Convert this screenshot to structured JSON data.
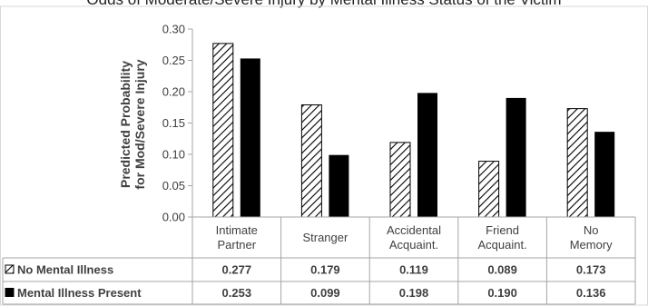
{
  "title": "Odds of Moderate/Severe Injury by Mental Illness Status of the Victim",
  "chart_data": {
    "type": "bar",
    "ylabel_lines": [
      "Predicted Probability",
      "for Mod/Severe Injury"
    ],
    "ylim": [
      0,
      0.3
    ],
    "yticks": [
      "0.00",
      "0.05",
      "0.10",
      "0.15",
      "0.20",
      "0.25",
      "0.30"
    ],
    "categories": [
      [
        "Intimate",
        "Partner"
      ],
      [
        "Stranger"
      ],
      [
        "Accidental",
        "Acquaint."
      ],
      [
        "Friend",
        "Acquaint."
      ],
      [
        "No",
        "Memory"
      ]
    ],
    "series": [
      {
        "name": "No Mental Illness",
        "pattern": "hatch",
        "values": [
          0.277,
          0.179,
          0.119,
          0.089,
          0.173
        ],
        "labels": [
          "0.277",
          "0.179",
          "0.119",
          "0.089",
          "0.173"
        ]
      },
      {
        "name": "Mental Illness Present",
        "pattern": "solid",
        "values": [
          0.253,
          0.099,
          0.198,
          0.19,
          0.136
        ],
        "labels": [
          "0.253",
          "0.099",
          "0.198",
          "0.190",
          "0.136"
        ]
      }
    ],
    "grid": false,
    "legend": "data-table"
  },
  "colors": {
    "bar_fill": "#000000",
    "axis": "#a6a6a6",
    "text": "#404040"
  }
}
